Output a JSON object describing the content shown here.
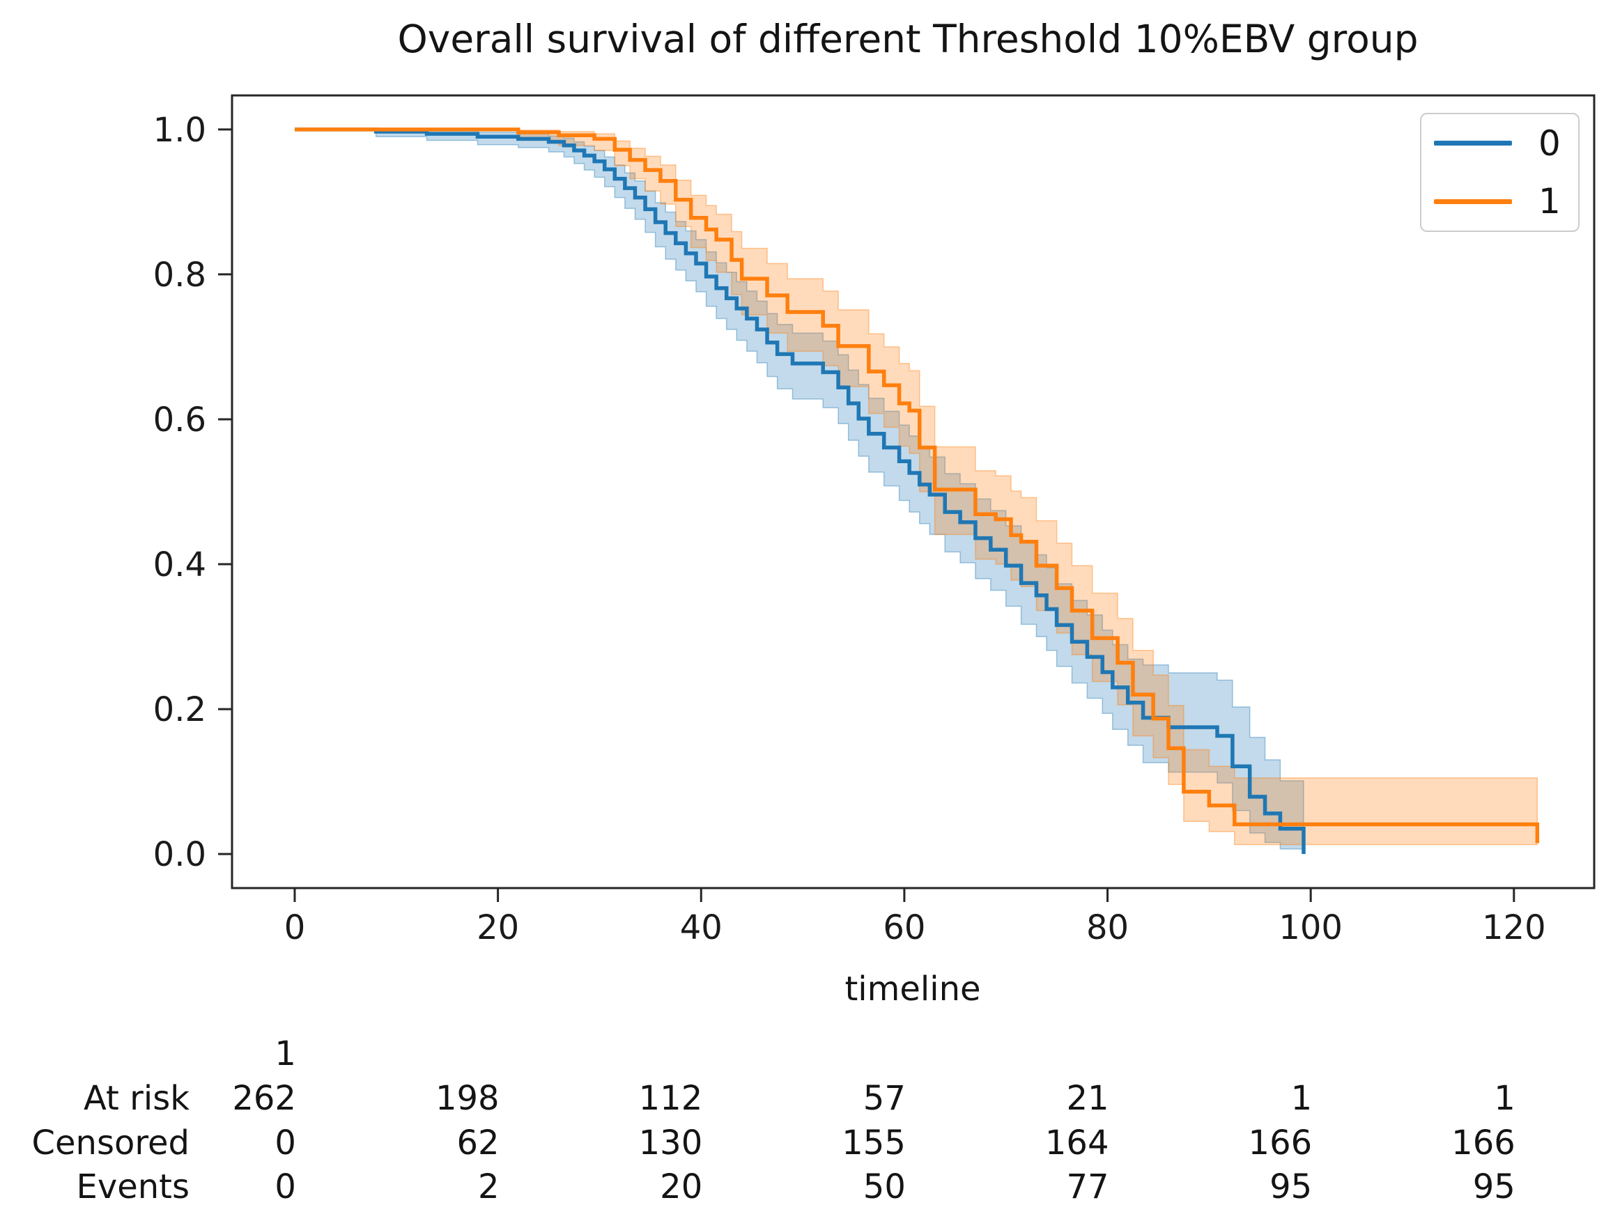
{
  "chart_data": {
    "type": "line",
    "subtype": "kaplan-meier-step",
    "title": "Overall survival of different Threshold 10%EBV group",
    "xlabel": "timeline",
    "ylabel": "",
    "xlim": [
      -6.17,
      127.9
    ],
    "ylim": [
      -0.047,
      1.047
    ],
    "x_ticks": [
      0,
      20,
      40,
      60,
      80,
      100,
      120
    ],
    "y_ticks": [
      1.0,
      0.8,
      0.6,
      0.4,
      0.2,
      0.0
    ],
    "grid": false,
    "legend_position": "upper-right",
    "legend": {
      "entries": [
        {
          "label": "0",
          "color": "#1f77b4"
        },
        {
          "label": "1",
          "color": "#ff7f0e"
        }
      ]
    },
    "series": [
      {
        "name": "0",
        "color": "#1f77b4",
        "fill": "rgba(31,119,180,0.27)",
        "edge": "rgba(31,119,180,0.40)",
        "points": [
          [
            0,
            1.0,
            1.0,
            1.0
          ],
          [
            8,
            0.997,
            0.99,
            1.0
          ],
          [
            13,
            0.994,
            0.985,
            0.999
          ],
          [
            18,
            0.99,
            0.979,
            0.996
          ],
          [
            22,
            0.987,
            0.975,
            0.994
          ],
          [
            25,
            0.983,
            0.969,
            0.991
          ],
          [
            26.5,
            0.978,
            0.962,
            0.988
          ],
          [
            27.5,
            0.971,
            0.953,
            0.983
          ],
          [
            28.5,
            0.964,
            0.944,
            0.977
          ],
          [
            29.5,
            0.956,
            0.934,
            0.971
          ],
          [
            30.5,
            0.945,
            0.921,
            0.962
          ],
          [
            31.5,
            0.932,
            0.906,
            0.951
          ],
          [
            32.5,
            0.919,
            0.891,
            0.94
          ],
          [
            33.5,
            0.906,
            0.876,
            0.929
          ],
          [
            34.5,
            0.89,
            0.858,
            0.915
          ],
          [
            35.5,
            0.872,
            0.838,
            0.899
          ],
          [
            36.5,
            0.857,
            0.821,
            0.886
          ],
          [
            37.5,
            0.843,
            0.806,
            0.873
          ],
          [
            38.5,
            0.829,
            0.791,
            0.86
          ],
          [
            39.5,
            0.815,
            0.776,
            0.848
          ],
          [
            40.5,
            0.797,
            0.756,
            0.831
          ],
          [
            41.5,
            0.781,
            0.739,
            0.816
          ],
          [
            42.5,
            0.767,
            0.724,
            0.803
          ],
          [
            43.5,
            0.753,
            0.709,
            0.79
          ],
          [
            44.5,
            0.739,
            0.694,
            0.777
          ],
          [
            45.5,
            0.724,
            0.678,
            0.763
          ],
          [
            46.5,
            0.706,
            0.659,
            0.746
          ],
          [
            47.5,
            0.69,
            0.642,
            0.731
          ],
          [
            49,
            0.677,
            0.628,
            0.719
          ],
          [
            52,
            0.665,
            0.616,
            0.708
          ],
          [
            53.5,
            0.644,
            0.594,
            0.689
          ],
          [
            54.5,
            0.622,
            0.571,
            0.668
          ],
          [
            55.5,
            0.601,
            0.549,
            0.648
          ],
          [
            56.5,
            0.58,
            0.527,
            0.629
          ],
          [
            58,
            0.561,
            0.508,
            0.611
          ],
          [
            59.5,
            0.542,
            0.488,
            0.592
          ],
          [
            60.5,
            0.526,
            0.472,
            0.577
          ],
          [
            61.5,
            0.51,
            0.456,
            0.561
          ],
          [
            62.5,
            0.496,
            0.441,
            0.548
          ],
          [
            64,
            0.472,
            0.417,
            0.525
          ],
          [
            65.5,
            0.458,
            0.402,
            0.511
          ],
          [
            67,
            0.436,
            0.38,
            0.49
          ],
          [
            68.5,
            0.42,
            0.364,
            0.474
          ],
          [
            70,
            0.398,
            0.342,
            0.453
          ],
          [
            71.5,
            0.374,
            0.317,
            0.43
          ],
          [
            73,
            0.357,
            0.3,
            0.413
          ],
          [
            74,
            0.338,
            0.281,
            0.395
          ],
          [
            75,
            0.316,
            0.259,
            0.373
          ],
          [
            76.5,
            0.293,
            0.236,
            0.35
          ],
          [
            78,
            0.272,
            0.215,
            0.33
          ],
          [
            79.5,
            0.251,
            0.194,
            0.309
          ],
          [
            80.5,
            0.23,
            0.172,
            0.289
          ],
          [
            82,
            0.209,
            0.15,
            0.269
          ],
          [
            83.5,
            0.188,
            0.126,
            0.261
          ],
          [
            86,
            0.175,
            0.113,
            0.25
          ],
          [
            90.8,
            0.163,
            0.098,
            0.24
          ],
          [
            92.3,
            0.121,
            0.06,
            0.203
          ],
          [
            94,
            0.079,
            0.029,
            0.161
          ],
          [
            95.5,
            0.056,
            0.016,
            0.13
          ],
          [
            97,
            0.035,
            0.007,
            0.101
          ],
          [
            99.3,
            0.0,
            0.0,
            0.062
          ]
        ]
      },
      {
        "name": "1",
        "color": "#ff7f0e",
        "fill": "rgba(255,127,14,0.28)",
        "edge": "rgba(255,127,14,0.42)",
        "points": [
          [
            0,
            1.0,
            1.0,
            1.0
          ],
          [
            22,
            0.996,
            0.985,
            0.999
          ],
          [
            26,
            0.992,
            0.978,
            0.997
          ],
          [
            29.5,
            0.987,
            0.971,
            0.994
          ],
          [
            31.5,
            0.972,
            0.95,
            0.984
          ],
          [
            33,
            0.958,
            0.932,
            0.974
          ],
          [
            34.5,
            0.944,
            0.915,
            0.963
          ],
          [
            36,
            0.929,
            0.897,
            0.951
          ],
          [
            37.5,
            0.903,
            0.866,
            0.93
          ],
          [
            39,
            0.878,
            0.837,
            0.909
          ],
          [
            40.5,
            0.862,
            0.819,
            0.895
          ],
          [
            41.5,
            0.848,
            0.803,
            0.883
          ],
          [
            43,
            0.82,
            0.772,
            0.859
          ],
          [
            44,
            0.794,
            0.744,
            0.836
          ],
          [
            46.5,
            0.771,
            0.719,
            0.815
          ],
          [
            48.5,
            0.748,
            0.694,
            0.794
          ],
          [
            52,
            0.729,
            0.674,
            0.777
          ],
          [
            53.5,
            0.701,
            0.645,
            0.751
          ],
          [
            56.5,
            0.666,
            0.608,
            0.718
          ],
          [
            58,
            0.647,
            0.589,
            0.7
          ],
          [
            59.5,
            0.622,
            0.563,
            0.677
          ],
          [
            60.5,
            0.612,
            0.553,
            0.667
          ],
          [
            61.5,
            0.561,
            0.5,
            0.618
          ],
          [
            63,
            0.503,
            0.441,
            0.562
          ],
          [
            67,
            0.469,
            0.407,
            0.529
          ],
          [
            69,
            0.462,
            0.4,
            0.522
          ],
          [
            70.5,
            0.44,
            0.378,
            0.501
          ],
          [
            71.5,
            0.431,
            0.369,
            0.492
          ],
          [
            73,
            0.398,
            0.336,
            0.46
          ],
          [
            75,
            0.367,
            0.305,
            0.429
          ],
          [
            76.5,
            0.336,
            0.275,
            0.398
          ],
          [
            78.5,
            0.298,
            0.238,
            0.36
          ],
          [
            81,
            0.264,
            0.206,
            0.325
          ],
          [
            82.5,
            0.22,
            0.163,
            0.281
          ],
          [
            84.5,
            0.187,
            0.133,
            0.247
          ],
          [
            86,
            0.146,
            0.096,
            0.205
          ],
          [
            87.5,
            0.086,
            0.045,
            0.144
          ],
          [
            90,
            0.067,
            0.031,
            0.121
          ],
          [
            92.5,
            0.041,
            0.013,
            0.105
          ],
          [
            122.3,
            0.015,
            0.013,
            0.105
          ]
        ]
      }
    ],
    "risk_table": {
      "group_header": "1",
      "columns": [
        0,
        20,
        40,
        60,
        80,
        100,
        120
      ],
      "rows": [
        {
          "label": "At risk",
          "values": [
            262,
            198,
            112,
            57,
            21,
            1,
            1
          ]
        },
        {
          "label": "Censored",
          "values": [
            0,
            62,
            130,
            155,
            164,
            166,
            166
          ]
        },
        {
          "label": "Events",
          "values": [
            0,
            2,
            20,
            50,
            77,
            95,
            95
          ]
        }
      ]
    }
  }
}
